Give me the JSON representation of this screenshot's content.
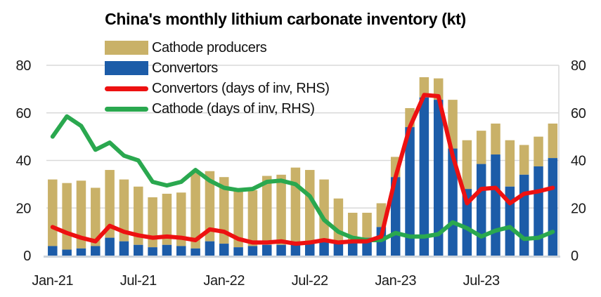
{
  "title": "China's monthly lithium carbonate inventory (kt)",
  "legend": [
    {
      "label": "Cathode producers",
      "type": "bar",
      "color": "#c9b168"
    },
    {
      "label": "Convertors",
      "type": "bar",
      "color": "#1c5ca8"
    },
    {
      "label": "Convertors (days of inv, RHS)",
      "type": "line",
      "color": "#ed1111"
    },
    {
      "label": "Cathode (days of inv, RHS)",
      "type": "line",
      "color": "#2aa84f"
    }
  ],
  "axes": {
    "left_ticks": [
      0,
      20,
      40,
      60,
      80
    ],
    "right_ticks": [
      0,
      20,
      40,
      60,
      80
    ],
    "x_tick_labels": [
      "Jan-21",
      "Jul-21",
      "Jan-22",
      "Jul-22",
      "Jan-23",
      "Jul-23"
    ],
    "ylim": [
      0,
      80
    ],
    "grid_color": "#d9d9d9",
    "baseline_color": "#ccd3da"
  },
  "chart_data": {
    "type": "bar",
    "subtype": "stacked bars with dual-axis lines",
    "title": "China's monthly lithium carbonate inventory (kt)",
    "ylim_left": [
      0,
      80
    ],
    "ylim_right": [
      0,
      80
    ],
    "legend_position": "top-left",
    "categories": [
      "Jan-21",
      "Feb-21",
      "Mar-21",
      "Apr-21",
      "May-21",
      "Jun-21",
      "Jul-21",
      "Aug-21",
      "Sep-21",
      "Oct-21",
      "Nov-21",
      "Dec-21",
      "Jan-22",
      "Feb-22",
      "Mar-22",
      "Apr-22",
      "May-22",
      "Jun-22",
      "Jul-22",
      "Aug-22",
      "Sep-22",
      "Oct-22",
      "Nov-22",
      "Dec-22",
      "Jan-23",
      "Feb-23",
      "Mar-23",
      "Apr-23",
      "May-23",
      "Jun-23",
      "Jul-23",
      "Aug-23",
      "Sep-23",
      "Oct-23",
      "Nov-23",
      "Dec-23"
    ],
    "series": [
      {
        "name": "Convertors",
        "type": "bar",
        "stack": "inventory",
        "axis": "left",
        "color": "#1c5ca8",
        "values": [
          4,
          2.5,
          3,
          4,
          7.5,
          6,
          4.5,
          3.5,
          4.5,
          4,
          3,
          6,
          5,
          3.5,
          4,
          4.5,
          4.5,
          4.5,
          5,
          6,
          6,
          6.5,
          7.5,
          12,
          33,
          54,
          66.5,
          65.5,
          45,
          28,
          38.5,
          42.5,
          29,
          34,
          37.5,
          41
        ]
      },
      {
        "name": "Cathode producers",
        "type": "bar",
        "stack": "inventory",
        "axis": "left",
        "color": "#c9b168",
        "values": [
          28,
          28,
          28.5,
          24.5,
          28.5,
          26,
          24.5,
          21,
          21.5,
          22.5,
          32.5,
          29.5,
          28,
          23.5,
          23.5,
          29,
          29.5,
          32.5,
          31,
          26,
          18,
          11.5,
          10.5,
          10,
          8.5,
          8,
          8.5,
          9,
          20.5,
          20.5,
          14,
          13,
          19.5,
          12.5,
          12.5,
          14.5
        ]
      },
      {
        "name": "Convertors (days of inv, RHS)",
        "type": "line",
        "axis": "right",
        "color": "#ed1111",
        "values": [
          12,
          9.5,
          7.5,
          6,
          12.5,
          10,
          8.5,
          7.5,
          8,
          7.5,
          6.5,
          11,
          10,
          7,
          5.5,
          5.5,
          6,
          5,
          5.5,
          6.5,
          5.5,
          6,
          6,
          8,
          33,
          54,
          67.5,
          67,
          42,
          22,
          28,
          28.5,
          22,
          26,
          27,
          28.5
        ]
      },
      {
        "name": "Cathode (days of inv, RHS)",
        "type": "line",
        "axis": "right",
        "color": "#2aa84f",
        "values": [
          50,
          58.5,
          54.5,
          44.5,
          47.5,
          42,
          40,
          31,
          29.5,
          31,
          36,
          31.5,
          28.5,
          27.5,
          28,
          31,
          31.5,
          30,
          25,
          15,
          10,
          7.5,
          6.5,
          6.5,
          9.5,
          8,
          8,
          9,
          14,
          11.5,
          8,
          10.5,
          12,
          7,
          7.5,
          10
        ]
      }
    ]
  }
}
